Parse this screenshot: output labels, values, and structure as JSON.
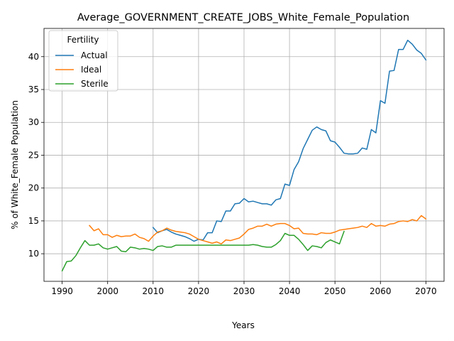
{
  "chart_data": {
    "type": "line",
    "title": "Average_GOVERNMENT_CREATE_JOBS_White_Female_Population",
    "xlabel": "Years",
    "ylabel": "% of White_Female Population",
    "xlim": [
      1986,
      2074
    ],
    "ylim": [
      5.8,
      44.3
    ],
    "xticks": [
      1990,
      2000,
      2010,
      2020,
      2030,
      2040,
      2050,
      2060,
      2070
    ],
    "yticks": [
      10,
      15,
      20,
      25,
      30,
      35,
      40
    ],
    "grid": true,
    "legend": {
      "title": "Fertility",
      "placement": "top-left"
    },
    "series": [
      {
        "name": "Actual",
        "color": "#1f77b4",
        "x": [
          2010,
          2011,
          2012,
          2013,
          2014,
          2015,
          2016,
          2017,
          2018,
          2019,
          2020,
          2021,
          2022,
          2023,
          2024,
          2025,
          2026,
          2027,
          2028,
          2029,
          2030,
          2031,
          2032,
          2033,
          2034,
          2035,
          2036,
          2037,
          2038,
          2039,
          2040,
          2041,
          2042,
          2043,
          2044,
          2045,
          2046,
          2047,
          2048,
          2049,
          2050,
          2051,
          2052,
          2053,
          2054,
          2055,
          2056,
          2057,
          2058,
          2059,
          2060,
          2061,
          2062,
          2063,
          2064,
          2065,
          2066,
          2067,
          2068,
          2069,
          2070
        ],
        "y": [
          14.0,
          13.2,
          13.5,
          13.7,
          13.3,
          13.0,
          12.8,
          12.6,
          12.3,
          11.9,
          12.2,
          12.1,
          13.2,
          13.2,
          15.0,
          14.9,
          16.5,
          16.5,
          17.6,
          17.7,
          18.4,
          17.9,
          18.0,
          17.8,
          17.6,
          17.6,
          17.4,
          18.2,
          18.4,
          20.6,
          20.4,
          22.8,
          24.0,
          26.0,
          27.4,
          28.8,
          29.3,
          28.9,
          28.7,
          27.2,
          27.0,
          26.2,
          25.3,
          25.2,
          25.2,
          25.3,
          26.1,
          25.9,
          28.9,
          28.4,
          33.3,
          32.9,
          37.8,
          37.9,
          41.1,
          41.1,
          42.5,
          41.9,
          41.0,
          40.5,
          39.5
        ]
      },
      {
        "name": "Ideal",
        "color": "#ff7f0e",
        "x": [
          1996,
          1997,
          1998,
          1999,
          2000,
          2001,
          2002,
          2003,
          2004,
          2005,
          2006,
          2007,
          2008,
          2009,
          2010,
          2011,
          2012,
          2013,
          2014,
          2015,
          2016,
          2017,
          2018,
          2019,
          2020,
          2021,
          2022,
          2023,
          2024,
          2025,
          2026,
          2027,
          2028,
          2029,
          2030,
          2031,
          2032,
          2033,
          2034,
          2035,
          2036,
          2037,
          2038,
          2039,
          2040,
          2041,
          2042,
          2043,
          2044,
          2045,
          2046,
          2047,
          2048,
          2049,
          2050,
          2051,
          2052,
          2053,
          2054,
          2055,
          2056,
          2057,
          2058,
          2059,
          2060,
          2061,
          2062,
          2063,
          2064,
          2065,
          2066,
          2067,
          2068,
          2069,
          2070
        ],
        "y": [
          14.3,
          13.5,
          13.8,
          12.9,
          12.9,
          12.5,
          12.8,
          12.6,
          12.7,
          12.7,
          13.0,
          12.5,
          12.3,
          11.9,
          12.7,
          13.3,
          13.5,
          13.9,
          13.6,
          13.4,
          13.3,
          13.2,
          13.0,
          12.6,
          12.2,
          12.0,
          11.8,
          11.6,
          11.8,
          11.5,
          12.1,
          12.0,
          12.2,
          12.4,
          13.0,
          13.7,
          13.9,
          14.2,
          14.2,
          14.5,
          14.2,
          14.5,
          14.6,
          14.6,
          14.3,
          13.8,
          13.9,
          13.1,
          13.0,
          13.0,
          12.9,
          13.2,
          13.1,
          13.1,
          13.3,
          13.6,
          13.7,
          13.8,
          13.9,
          14.0,
          14.2,
          14.0,
          14.6,
          14.2,
          14.3,
          14.2,
          14.5,
          14.6,
          14.9,
          15.0,
          14.9,
          15.2,
          15.0,
          15.8,
          15.3
        ]
      },
      {
        "name": "Sterile",
        "color": "#2ca02c",
        "x": [
          1990,
          1991,
          1992,
          1993,
          1994,
          1995,
          1996,
          1997,
          1998,
          1999,
          2000,
          2001,
          2002,
          2003,
          2004,
          2005,
          2006,
          2007,
          2008,
          2009,
          2010,
          2011,
          2012,
          2013,
          2014,
          2015,
          2016,
          2017,
          2018,
          2019,
          2020,
          2021,
          2022,
          2023,
          2024,
          2025,
          2026,
          2027,
          2028,
          2029,
          2030,
          2031,
          2032,
          2033,
          2034,
          2035,
          2036,
          2037,
          2038,
          2039,
          2040,
          2041,
          2042,
          2043,
          2044,
          2045,
          2046,
          2047,
          2048,
          2049,
          2050,
          2051,
          2052
        ],
        "y": [
          7.4,
          8.8,
          8.9,
          9.7,
          10.9,
          12.0,
          11.3,
          11.3,
          11.5,
          10.9,
          10.7,
          10.9,
          11.1,
          10.4,
          10.3,
          11.0,
          10.9,
          10.7,
          10.8,
          10.7,
          10.5,
          11.1,
          11.2,
          11.0,
          11.0,
          11.3,
          11.3,
          11.3,
          11.3,
          11.3,
          11.3,
          11.3,
          11.3,
          11.3,
          11.3,
          11.3,
          11.3,
          11.3,
          11.3,
          11.3,
          11.3,
          11.3,
          11.4,
          11.3,
          11.1,
          11.0,
          11.0,
          11.4,
          12.0,
          13.1,
          12.8,
          12.8,
          12.2,
          11.4,
          10.5,
          11.2,
          11.1,
          10.9,
          11.7,
          12.1,
          11.8,
          11.5,
          13.4
        ]
      }
    ]
  }
}
